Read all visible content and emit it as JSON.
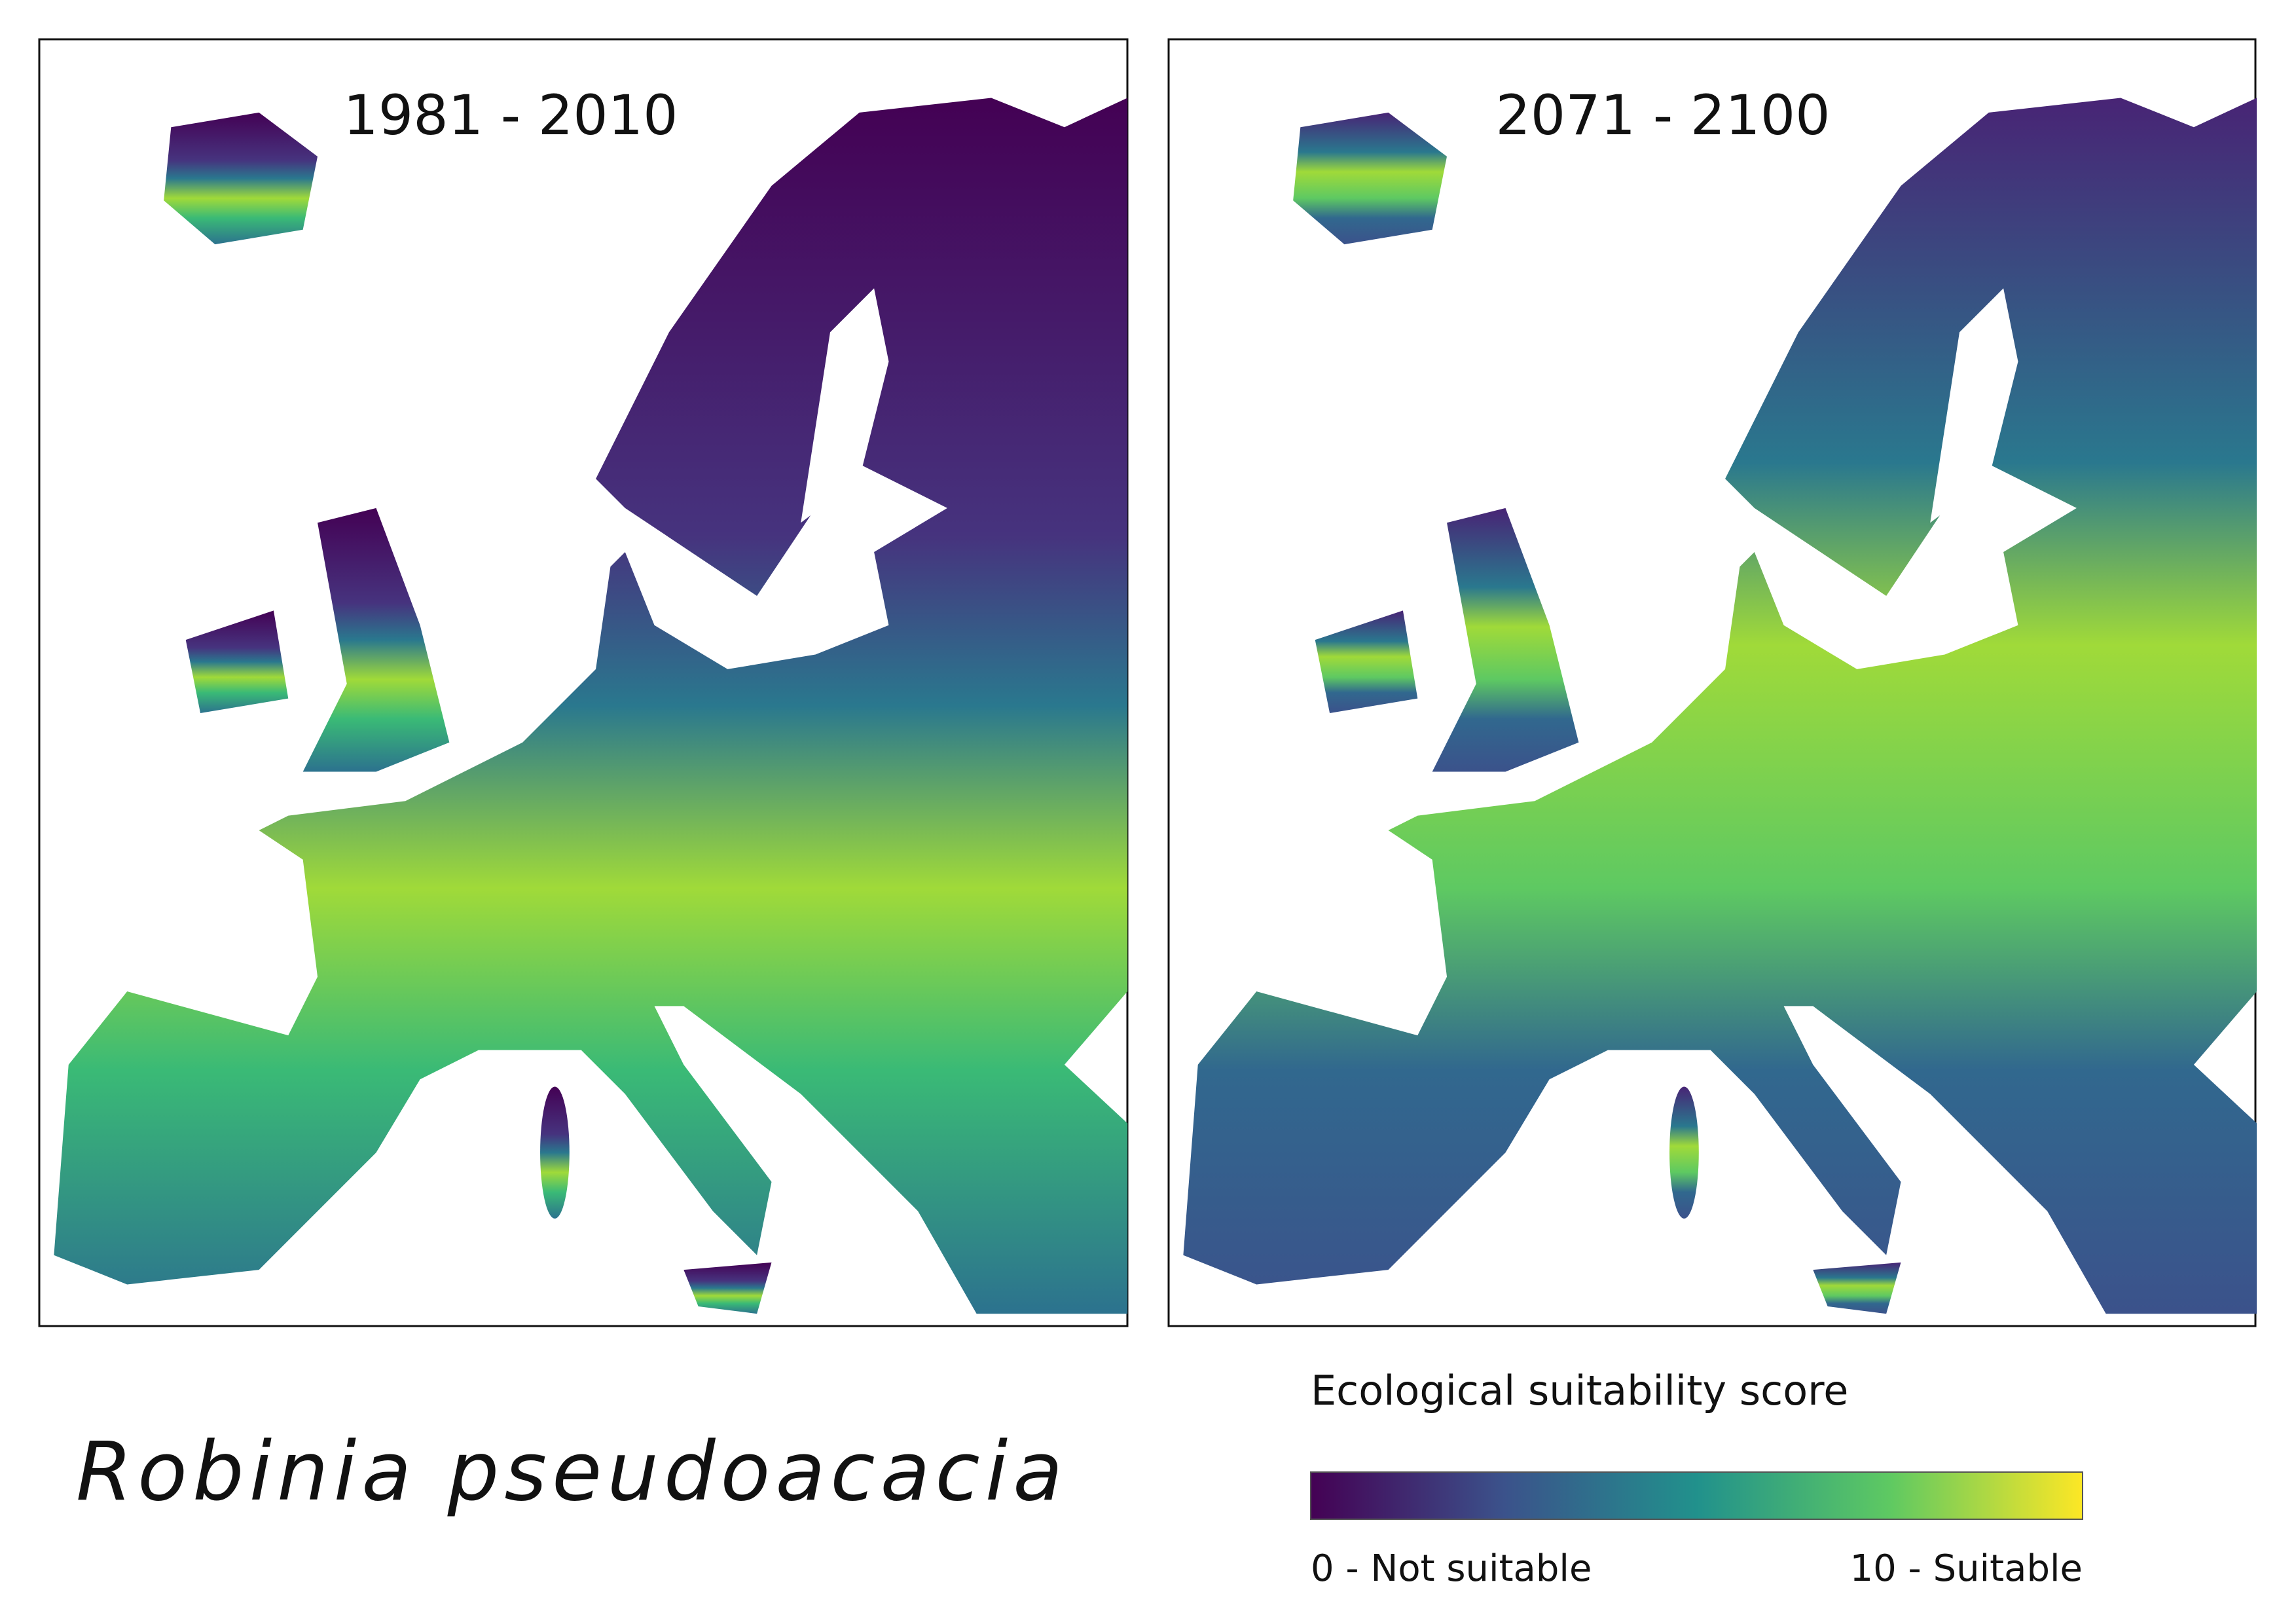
{
  "panels": [
    {
      "title": "1981 - 2010"
    },
    {
      "title": "2071 - 2100"
    }
  ],
  "species": "Robinia pseudoacacia",
  "legend": {
    "title": "Ecological suitability score",
    "min_label": "0 - Not suitable",
    "max_label": "10 - Suitable"
  }
}
